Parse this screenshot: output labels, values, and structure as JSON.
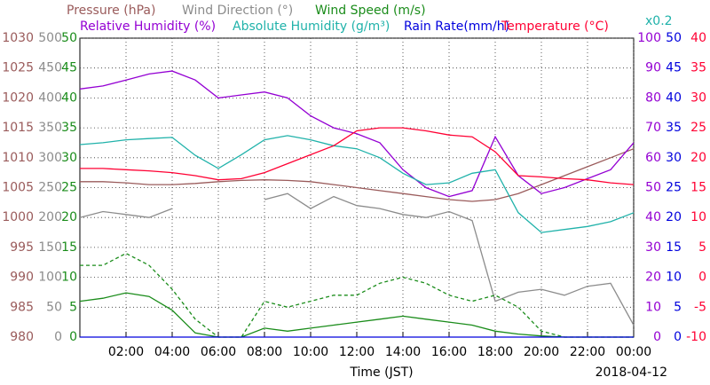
{
  "chart_data": {
    "type": "line",
    "x": [
      0,
      1,
      2,
      3,
      4,
      5,
      6,
      7,
      8,
      9,
      10,
      11,
      12,
      13,
      14,
      15,
      16,
      17,
      18,
      19,
      20,
      21,
      22,
      23,
      24
    ],
    "xlim": [
      0,
      24
    ],
    "xticks": [
      {
        "value": 2,
        "label": "02:00"
      },
      {
        "value": 4,
        "label": "04:00"
      },
      {
        "value": 6,
        "label": "06:00"
      },
      {
        "value": 8,
        "label": "08:00"
      },
      {
        "value": 10,
        "label": "10:00"
      },
      {
        "value": 12,
        "label": "12:00"
      },
      {
        "value": 14,
        "label": "14:00"
      },
      {
        "value": 16,
        "label": "16:00"
      },
      {
        "value": 18,
        "label": "18:00"
      },
      {
        "value": 20,
        "label": "20:00"
      },
      {
        "value": 22,
        "label": "22:00"
      },
      {
        "value": 24,
        "label": "00:00"
      }
    ],
    "xlabel": "Time (JST)",
    "date": "2018-04-12",
    "grid": true,
    "scale_label": "x0.2",
    "y_axes": [
      {
        "side": "left",
        "color": "#9a5b5b",
        "lim": [
          980,
          1030
        ],
        "ticks": [
          980,
          985,
          990,
          995,
          1000,
          1005,
          1010,
          1015,
          1020,
          1025,
          1030
        ]
      },
      {
        "side": "left",
        "color": "#8c8c8c",
        "lim": [
          0,
          500
        ],
        "ticks": [
          0,
          50,
          100,
          150,
          200,
          250,
          300,
          350,
          400,
          450,
          500
        ]
      },
      {
        "side": "left",
        "color": "#1a8c1a",
        "lim": [
          0,
          50
        ],
        "ticks": [
          0,
          5,
          10,
          15,
          20,
          25,
          30,
          35,
          40,
          45,
          50
        ]
      },
      {
        "side": "right",
        "color": "#9400d3",
        "lim": [
          0,
          100
        ],
        "ticks": [
          0,
          10,
          20,
          30,
          40,
          50,
          60,
          70,
          80,
          90,
          100
        ]
      },
      {
        "side": "right",
        "color": "#0000dd",
        "lim": [
          0,
          50
        ],
        "ticks": [
          0,
          5,
          10,
          15,
          20,
          25,
          30,
          35,
          40,
          45,
          50
        ]
      },
      {
        "side": "right",
        "color": "#ff0033",
        "lim": [
          -10,
          40
        ],
        "ticks": [
          -10,
          -5,
          0,
          5,
          10,
          15,
          20,
          25,
          30,
          35,
          40
        ]
      }
    ],
    "series": [
      {
        "name": "Pressure (hPa)",
        "color": "#9a5b5b",
        "axis": 0,
        "values": [
          1006,
          1006,
          1005.8,
          1005.5,
          1005.5,
          1005.7,
          1006,
          1006.2,
          1006.3,
          1006.2,
          1006,
          1005.5,
          1005,
          1004.5,
          1004,
          1003.5,
          1003,
          1002.7,
          1003,
          1004,
          1005.5,
          1007,
          1008.5,
          1010,
          1011.5
        ]
      },
      {
        "name": "Wind Direction (°)",
        "color": "#8c8c8c",
        "axis": 1,
        "values": [
          200,
          210,
          205,
          200,
          215,
          null,
          null,
          null,
          230,
          240,
          215,
          235,
          220,
          215,
          205,
          200,
          210,
          195,
          60,
          75,
          80,
          70,
          85,
          90,
          20
        ]
      },
      {
        "name": "Wind Speed (m/s)",
        "color": "#1a8c1a",
        "axis": 2,
        "values": [
          6,
          6.5,
          7.4,
          6.8,
          4.5,
          0.7,
          0,
          0,
          1.5,
          1,
          1.5,
          2,
          2.5,
          3,
          3.5,
          3,
          2.5,
          2,
          1,
          0.5,
          0.2,
          0,
          0,
          0,
          0
        ]
      },
      {
        "color": "#1a8c1a",
        "axis": 2,
        "dash": true,
        "values": [
          12,
          12,
          14,
          12,
          8,
          3,
          0,
          0,
          6,
          5,
          6,
          7,
          7,
          9,
          10,
          9,
          7,
          6,
          7,
          5,
          1,
          0,
          0,
          0,
          0
        ]
      },
      {
        "name": "Relative Humidity (%)",
        "color": "#9400d3",
        "axis": 3,
        "values": [
          83,
          84,
          86,
          88,
          89,
          86,
          80,
          81,
          82,
          80,
          74,
          70,
          68,
          65,
          56,
          50,
          47,
          49,
          67,
          54,
          48,
          50,
          53,
          56,
          65
        ]
      },
      {
        "name": "Absolute Humidity (g/m³)",
        "color": "#20b2aa",
        "axis": 4,
        "values": [
          32.2,
          32.5,
          33,
          33.2,
          33.4,
          30.4,
          28.2,
          30.5,
          33,
          33.7,
          33,
          32,
          31.5,
          30,
          27.4,
          25.5,
          25.8,
          27.4,
          28,
          20.8,
          17.5,
          18,
          18.5,
          19.3,
          20.8
        ]
      },
      {
        "name": "Rain Rate(mm/h)",
        "color": "#0000dd",
        "axis": 4,
        "values": [
          0,
          0,
          0,
          0,
          0,
          0,
          0,
          0,
          0,
          0,
          0,
          0,
          0,
          0,
          0,
          0,
          0,
          0,
          0,
          0,
          0,
          0,
          0,
          0,
          0
        ]
      },
      {
        "name": "Temperature (°C)",
        "color": "#ff0033",
        "axis": 5,
        "values": [
          18.2,
          18.2,
          18,
          17.8,
          17.5,
          17,
          16.3,
          16.5,
          17.5,
          19,
          20.5,
          22,
          24.5,
          25,
          25,
          24.5,
          23.8,
          23.5,
          21,
          17,
          16.8,
          16.5,
          16.3,
          15.8,
          15.5
        ]
      }
    ]
  }
}
